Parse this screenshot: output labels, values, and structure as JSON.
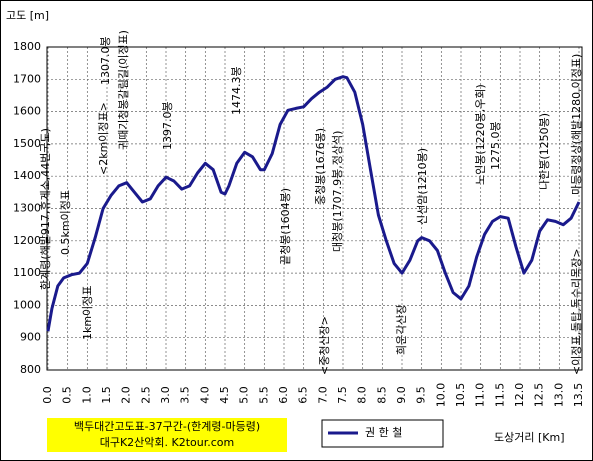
{
  "chart_data": {
    "type": "line",
    "title": "백두대간고도표-37구간-(한계령-마등령)",
    "subtitle": "대구K2산악회. K2tour.com",
    "y_label": "고도 [m]",
    "x_label": "도상거리 [Km]",
    "grid": true,
    "ylim": [
      800,
      1800
    ],
    "yticks": [
      800,
      900,
      1000,
      1100,
      1200,
      1300,
      1400,
      1500,
      1600,
      1700,
      1800
    ],
    "xlim": [
      0,
      13.5
    ],
    "xticks": [
      {
        "value": 0,
        "label": "0.0"
      },
      0.5,
      {
        "value": 1,
        "label": "1.0"
      },
      1.5,
      {
        "value": 2,
        "label": "2.0"
      },
      2.5,
      {
        "value": 3,
        "label": "3.0"
      },
      3.5,
      {
        "value": 4,
        "label": "4.0"
      },
      4.5,
      {
        "value": 5,
        "label": "5.0"
      },
      5.5,
      {
        "value": 6,
        "label": "6.0"
      },
      6.5,
      {
        "value": 7,
        "label": "7.0"
      },
      7.5,
      {
        "value": 8,
        "label": "8.0"
      },
      8.5,
      {
        "value": 9,
        "label": "9.0"
      },
      9.5,
      {
        "value": 10,
        "label": "10.0"
      },
      10.5,
      {
        "value": 11,
        "label": "11.0"
      },
      11.5,
      {
        "value": 12,
        "label": "12.0"
      },
      12.5,
      {
        "value": 13,
        "label": "13.0"
      },
      13.5
    ],
    "x": [
      0,
      0.1,
      0.25,
      0.4,
      0.6,
      0.8,
      1.0,
      1.2,
      1.4,
      1.6,
      1.8,
      2.0,
      2.2,
      2.4,
      2.6,
      2.8,
      3.0,
      3.2,
      3.4,
      3.6,
      3.8,
      4.0,
      4.2,
      4.4,
      4.5,
      4.6,
      4.8,
      5.0,
      5.2,
      5.4,
      5.5,
      5.7,
      5.9,
      6.1,
      6.3,
      6.5,
      6.7,
      6.9,
      7.1,
      7.3,
      7.5,
      7.6,
      7.8,
      8.0,
      8.2,
      8.4,
      8.6,
      8.8,
      9.0,
      9.2,
      9.4,
      9.5,
      9.7,
      9.9,
      10.1,
      10.3,
      10.5,
      10.7,
      10.9,
      11.1,
      11.3,
      11.5,
      11.7,
      11.9,
      12.1,
      12.3,
      12.5,
      12.7,
      12.9,
      13.1,
      13.3,
      13.5
    ],
    "series": [
      {
        "name": "권 한 철",
        "color": "#1a1a8c",
        "values": [
          920,
          990,
          1060,
          1085,
          1095,
          1100,
          1130,
          1210,
          1300,
          1340,
          1370,
          1380,
          1350,
          1320,
          1330,
          1370,
          1397,
          1385,
          1360,
          1370,
          1410,
          1440,
          1420,
          1350,
          1345,
          1370,
          1440,
          1474,
          1460,
          1420,
          1420,
          1470,
          1560,
          1604,
          1610,
          1615,
          1640,
          1660,
          1676,
          1700,
          1708,
          1705,
          1660,
          1560,
          1420,
          1280,
          1200,
          1130,
          1100,
          1140,
          1200,
          1210,
          1200,
          1170,
          1100,
          1040,
          1020,
          1060,
          1150,
          1220,
          1260,
          1275,
          1270,
          1180,
          1100,
          1140,
          1230,
          1265,
          1260,
          1250,
          1270,
          1320
        ]
      }
    ],
    "annotations": [
      "한계령(해발917,휴게소,44번국도)",
      "0.5km이정표",
      "1km이정표",
      "<2km이정표>",
      "1307.0봉",
      "귀때기청봉갈림길(이정표)",
      "1397.0봉",
      "1474.3봉",
      "끝청봉(1604봉)",
      "중청봉(1676봉)",
      "대청봉(1707.9봉,정상석)",
      "<중청산장>",
      "희운각산장",
      "신선암(1210봉)",
      "노인봉(1220봉,우회)",
      "1275.0봉",
      "나한봉(1250봉)",
      "마등령정상(해발1280,이정표)",
      "<이정표,돌탑,독수리목장>"
    ]
  }
}
